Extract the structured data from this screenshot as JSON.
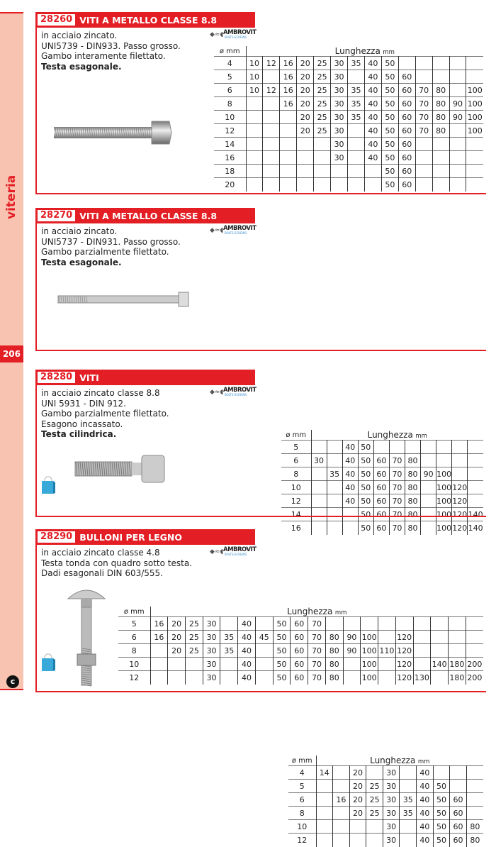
{
  "sidebar": {
    "label": "viteria",
    "page_number": "206",
    "logo_letter": "c",
    "color": "#e31e24"
  },
  "brand": {
    "name": "AMBROVIT",
    "tagline": "BOLTS-SCREWS"
  },
  "sections": [
    {
      "code": "28260",
      "title": "VITI A METALLO CLASSE 8.8",
      "lines": [
        "in acciaio zincato.",
        "UNI5739 - DIN933. Passo grosso.",
        "Gambo interamente filettato."
      ],
      "bold": "Testa esagonale.",
      "table": {
        "dia_header": "ø mm",
        "len_header": "Lunghezza",
        "len_unit": "mm",
        "rows": [
          {
            "d": "4",
            "v": [
              "10",
              "12",
              "16",
              "20",
              "25",
              "30",
              "35",
              "40",
              "50",
              "",
              "",
              "",
              "",
              ""
            ]
          },
          {
            "d": "5",
            "v": [
              "10",
              "",
              "16",
              "20",
              "25",
              "30",
              "",
              "40",
              "50",
              "60",
              "",
              "",
              "",
              ""
            ]
          },
          {
            "d": "6",
            "v": [
              "10",
              "12",
              "16",
              "20",
              "25",
              "30",
              "35",
              "40",
              "50",
              "60",
              "70",
              "80",
              "",
              "100"
            ]
          },
          {
            "d": "8",
            "v": [
              "",
              "",
              "16",
              "20",
              "25",
              "30",
              "35",
              "40",
              "50",
              "60",
              "70",
              "80",
              "90",
              "100"
            ]
          },
          {
            "d": "10",
            "v": [
              "",
              "",
              "",
              "20",
              "25",
              "30",
              "35",
              "40",
              "50",
              "60",
              "70",
              "80",
              "90",
              "100"
            ]
          },
          {
            "d": "12",
            "v": [
              "",
              "",
              "",
              "20",
              "25",
              "30",
              "",
              "40",
              "50",
              "60",
              "70",
              "80",
              "",
              "100"
            ]
          },
          {
            "d": "14",
            "v": [
              "",
              "",
              "",
              "",
              "",
              "30",
              "",
              "40",
              "50",
              "60",
              "",
              "",
              "",
              ""
            ]
          },
          {
            "d": "16",
            "v": [
              "",
              "",
              "",
              "",
              "",
              "30",
              "",
              "40",
              "50",
              "60",
              "",
              "",
              "",
              ""
            ]
          },
          {
            "d": "18",
            "v": [
              "",
              "",
              "",
              "",
              "",
              "",
              "",
              "",
              "50",
              "60",
              "",
              "",
              "",
              ""
            ]
          },
          {
            "d": "20",
            "v": [
              "",
              "",
              "",
              "",
              "",
              "",
              "",
              "",
              "50",
              "60",
              "",
              "",
              "",
              ""
            ]
          }
        ]
      }
    },
    {
      "code": "28270",
      "title": "VITI A METALLO CLASSE 8.8",
      "lines": [
        "in acciaio zincato.",
        "UNI5737 - DIN931. Passo grosso.",
        "Gambo parzialmente filettato."
      ],
      "bold": "Testa esagonale.",
      "table": {
        "dia_header": "ø mm",
        "len_header": "Lunghezza",
        "len_unit": "mm",
        "rows": [
          {
            "d": "5",
            "v": [
              "",
              "",
              "40",
              "50",
              "",
              "",
              "",
              "",
              "",
              "",
              ""
            ]
          },
          {
            "d": "6",
            "v": [
              "30",
              "",
              "40",
              "50",
              "60",
              "70",
              "80",
              "",
              "",
              "",
              ""
            ]
          },
          {
            "d": "8",
            "v": [
              "",
              "35",
              "40",
              "50",
              "60",
              "70",
              "80",
              "90",
              "100",
              "",
              ""
            ]
          },
          {
            "d": "10",
            "v": [
              "",
              "",
              "40",
              "50",
              "60",
              "70",
              "80",
              "",
              "100",
              "120",
              ""
            ]
          },
          {
            "d": "12",
            "v": [
              "",
              "",
              "40",
              "50",
              "60",
              "70",
              "80",
              "",
              "100",
              "120",
              ""
            ]
          },
          {
            "d": "14",
            "v": [
              "",
              "",
              "",
              "50",
              "60",
              "70",
              "80",
              "",
              "100",
              "120",
              "140"
            ]
          },
          {
            "d": "16",
            "v": [
              "",
              "",
              "",
              "50",
              "60",
              "70",
              "80",
              "",
              "100",
              "120",
              "140"
            ]
          }
        ]
      }
    },
    {
      "code": "28280",
      "title": "VITI",
      "lines": [
        "in acciaio zincato classe 8.8",
        "UNI 5931 - DIN 912.",
        "Gambo parzialmente filettato.",
        "Esagono incassato."
      ],
      "bold": "Testa cilindrica.",
      "table": {
        "dia_header": "ø mm",
        "len_header": "Lunghezza",
        "len_unit": "mm",
        "rows": [
          {
            "d": "4",
            "v": [
              "14",
              "",
              "20",
              "",
              "30",
              "",
              "40",
              "",
              "",
              ""
            ]
          },
          {
            "d": "5",
            "v": [
              "",
              "",
              "20",
              "25",
              "30",
              "",
              "40",
              "50",
              "",
              ""
            ]
          },
          {
            "d": "6",
            "v": [
              "",
              "16",
              "20",
              "25",
              "30",
              "35",
              "40",
              "50",
              "60",
              ""
            ]
          },
          {
            "d": "8",
            "v": [
              "",
              "",
              "20",
              "25",
              "30",
              "35",
              "40",
              "50",
              "60",
              ""
            ]
          },
          {
            "d": "10",
            "v": [
              "",
              "",
              "",
              "",
              "30",
              "",
              "40",
              "50",
              "60",
              "80"
            ]
          },
          {
            "d": "12",
            "v": [
              "",
              "",
              "",
              "",
              "30",
              "",
              "40",
              "50",
              "60",
              "80"
            ]
          }
        ]
      }
    },
    {
      "code": "28290",
      "title": "BULLONI PER LEGNO",
      "lines": [
        "in acciaio zincato classe 4.8",
        "Testa tonda con quadro sotto testa.",
        "Dadi esagonali  DIN 603/555."
      ],
      "bold": "",
      "table": {
        "dia_header": "ø mm",
        "len_header": "Lunghezza",
        "len_unit": "mm",
        "rows": [
          {
            "d": "5",
            "v": [
              "16",
              "20",
              "25",
              "30",
              "",
              "40",
              "",
              "50",
              "60",
              "70",
              "",
              "",
              "",
              "",
              "",
              "",
              "",
              "",
              ""
            ]
          },
          {
            "d": "6",
            "v": [
              "16",
              "20",
              "25",
              "30",
              "35",
              "40",
              "45",
              "50",
              "60",
              "70",
              "80",
              "90",
              "100",
              "",
              "120",
              "",
              "",
              "",
              ""
            ]
          },
          {
            "d": "8",
            "v": [
              "",
              "20",
              "25",
              "30",
              "35",
              "40",
              "",
              "50",
              "60",
              "70",
              "80",
              "90",
              "100",
              "110",
              "120",
              "",
              "",
              "",
              ""
            ]
          },
          {
            "d": "10",
            "v": [
              "",
              "",
              "",
              "30",
              "",
              "40",
              "",
              "50",
              "60",
              "70",
              "80",
              "",
              "100",
              "",
              "120",
              "",
              "140",
              "180",
              "200"
            ]
          },
          {
            "d": "12",
            "v": [
              "",
              "",
              "",
              "30",
              "",
              "40",
              "",
              "50",
              "60",
              "70",
              "80",
              "",
              "100",
              "",
              "120",
              "130",
              "",
              "180",
              "200"
            ]
          }
        ]
      }
    }
  ]
}
